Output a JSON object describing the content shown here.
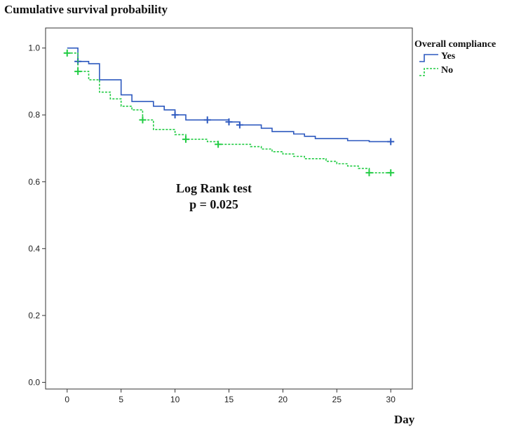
{
  "chart_data": {
    "type": "line",
    "ylabel": "Cumulative survival probability",
    "xlabel": "Day",
    "xlim": [
      -2,
      32
    ],
    "ylim": [
      -0.02,
      1.06
    ],
    "x_ticks": [
      0,
      5,
      10,
      15,
      20,
      25,
      30
    ],
    "y_ticks": [
      0.0,
      0.2,
      0.4,
      0.6,
      0.8,
      1.0
    ],
    "y_tick_labels": [
      "0.0",
      "0.2",
      "0.4",
      "0.6",
      "0.8",
      "1.0"
    ],
    "grid": false,
    "legend_title": "Overall compliance",
    "legend_position": "top-right",
    "annotation": {
      "line1": "Log Rank test",
      "line2": "p = 0.025"
    },
    "series": [
      {
        "name": "Yes",
        "color": "#2d59bf",
        "dash": "solid",
        "steps": [
          [
            0,
            1.0
          ],
          [
            1,
            0.96
          ],
          [
            2,
            0.953
          ],
          [
            3,
            0.905
          ],
          [
            5,
            0.86
          ],
          [
            6,
            0.84
          ],
          [
            8,
            0.826
          ],
          [
            9,
            0.815
          ],
          [
            10,
            0.8
          ],
          [
            11,
            0.785
          ],
          [
            15,
            0.779
          ],
          [
            16,
            0.77
          ],
          [
            18,
            0.76
          ],
          [
            19,
            0.75
          ],
          [
            21,
            0.743
          ],
          [
            22,
            0.736
          ],
          [
            23,
            0.729
          ],
          [
            26,
            0.723
          ],
          [
            28,
            0.72
          ],
          [
            30,
            0.72
          ]
        ],
        "censored": [
          [
            1,
            0.96
          ],
          [
            10,
            0.8
          ],
          [
            13,
            0.785
          ],
          [
            15,
            0.779
          ],
          [
            16,
            0.77
          ],
          [
            30,
            0.72
          ]
        ]
      },
      {
        "name": "No",
        "color": "#22cc44",
        "dash": "dashed",
        "steps": [
          [
            0,
            0.985
          ],
          [
            0.5,
            0.985
          ],
          [
            1,
            0.93
          ],
          [
            2,
            0.905
          ],
          [
            3,
            0.868
          ],
          [
            4,
            0.848
          ],
          [
            5,
            0.826
          ],
          [
            6,
            0.815
          ],
          [
            7,
            0.785
          ],
          [
            8,
            0.756
          ],
          [
            10,
            0.741
          ],
          [
            11,
            0.727
          ],
          [
            13,
            0.72
          ],
          [
            14,
            0.712
          ],
          [
            17,
            0.705
          ],
          [
            18,
            0.698
          ],
          [
            19,
            0.69
          ],
          [
            20,
            0.683
          ],
          [
            21,
            0.676
          ],
          [
            22,
            0.669
          ],
          [
            24,
            0.661
          ],
          [
            25,
            0.654
          ],
          [
            26,
            0.647
          ],
          [
            27,
            0.64
          ],
          [
            28,
            0.627
          ],
          [
            30,
            0.627
          ]
        ],
        "censored": [
          [
            0,
            0.985
          ],
          [
            1,
            0.93
          ],
          [
            7,
            0.785
          ],
          [
            11,
            0.727
          ],
          [
            14,
            0.712
          ],
          [
            28,
            0.627
          ],
          [
            30,
            0.627
          ]
        ]
      }
    ]
  }
}
